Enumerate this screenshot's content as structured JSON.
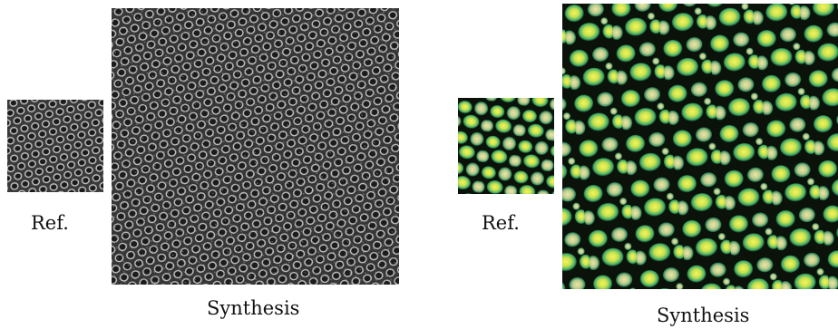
{
  "figure": {
    "left": {
      "reference_caption": "Ref.",
      "synthesis_caption": "Synthesis",
      "texture": "grayscale honeycomb cell structure",
      "colors": {
        "background": "#2b2b2b",
        "cell_wall": "#bdbdbd",
        "cell_hole": "#1c1c1c"
      }
    },
    "right": {
      "reference_caption": "Ref.",
      "synthesis_caption": "Synthesis",
      "texture": "yellow-green reptile scale pattern with dark outlines",
      "colors": {
        "outline": "#0a120a",
        "scale_edge": "#1e8f6a",
        "scale_mid": "#9fd44a",
        "scale_center": "#f2f25a",
        "scale_pale": "#d9d39a"
      }
    }
  }
}
